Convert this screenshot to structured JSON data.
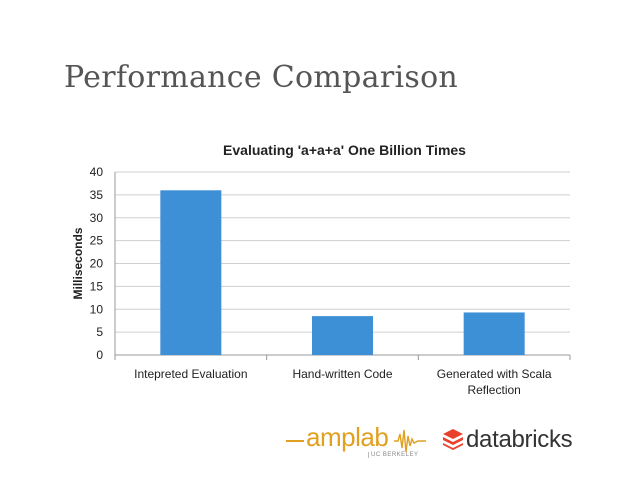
{
  "slide": {
    "title": "Performance Comparison"
  },
  "chart_data": {
    "type": "bar",
    "title": "Evaluating 'a+a+a' One Billion Times",
    "xlabel": "",
    "ylabel": "Milliseconds",
    "ylim": [
      0,
      40
    ],
    "yticks": [
      0,
      5,
      10,
      15,
      20,
      25,
      30,
      35,
      40
    ],
    "categories": [
      [
        "Intepreted Evaluation"
      ],
      [
        "Hand-written Code"
      ],
      [
        "Generated with Scala",
        "Reflection"
      ]
    ],
    "values": [
      36,
      8.5,
      9.3
    ],
    "grid": true,
    "bar_color": "#3d8fd6"
  },
  "logos": {
    "amplab": {
      "text": "amplab",
      "sub": "UC BERKELEY",
      "color": "#e0a020"
    },
    "databricks": {
      "text": "databricks",
      "icon": "databricks-stack-icon",
      "color": "#e8412c"
    }
  }
}
